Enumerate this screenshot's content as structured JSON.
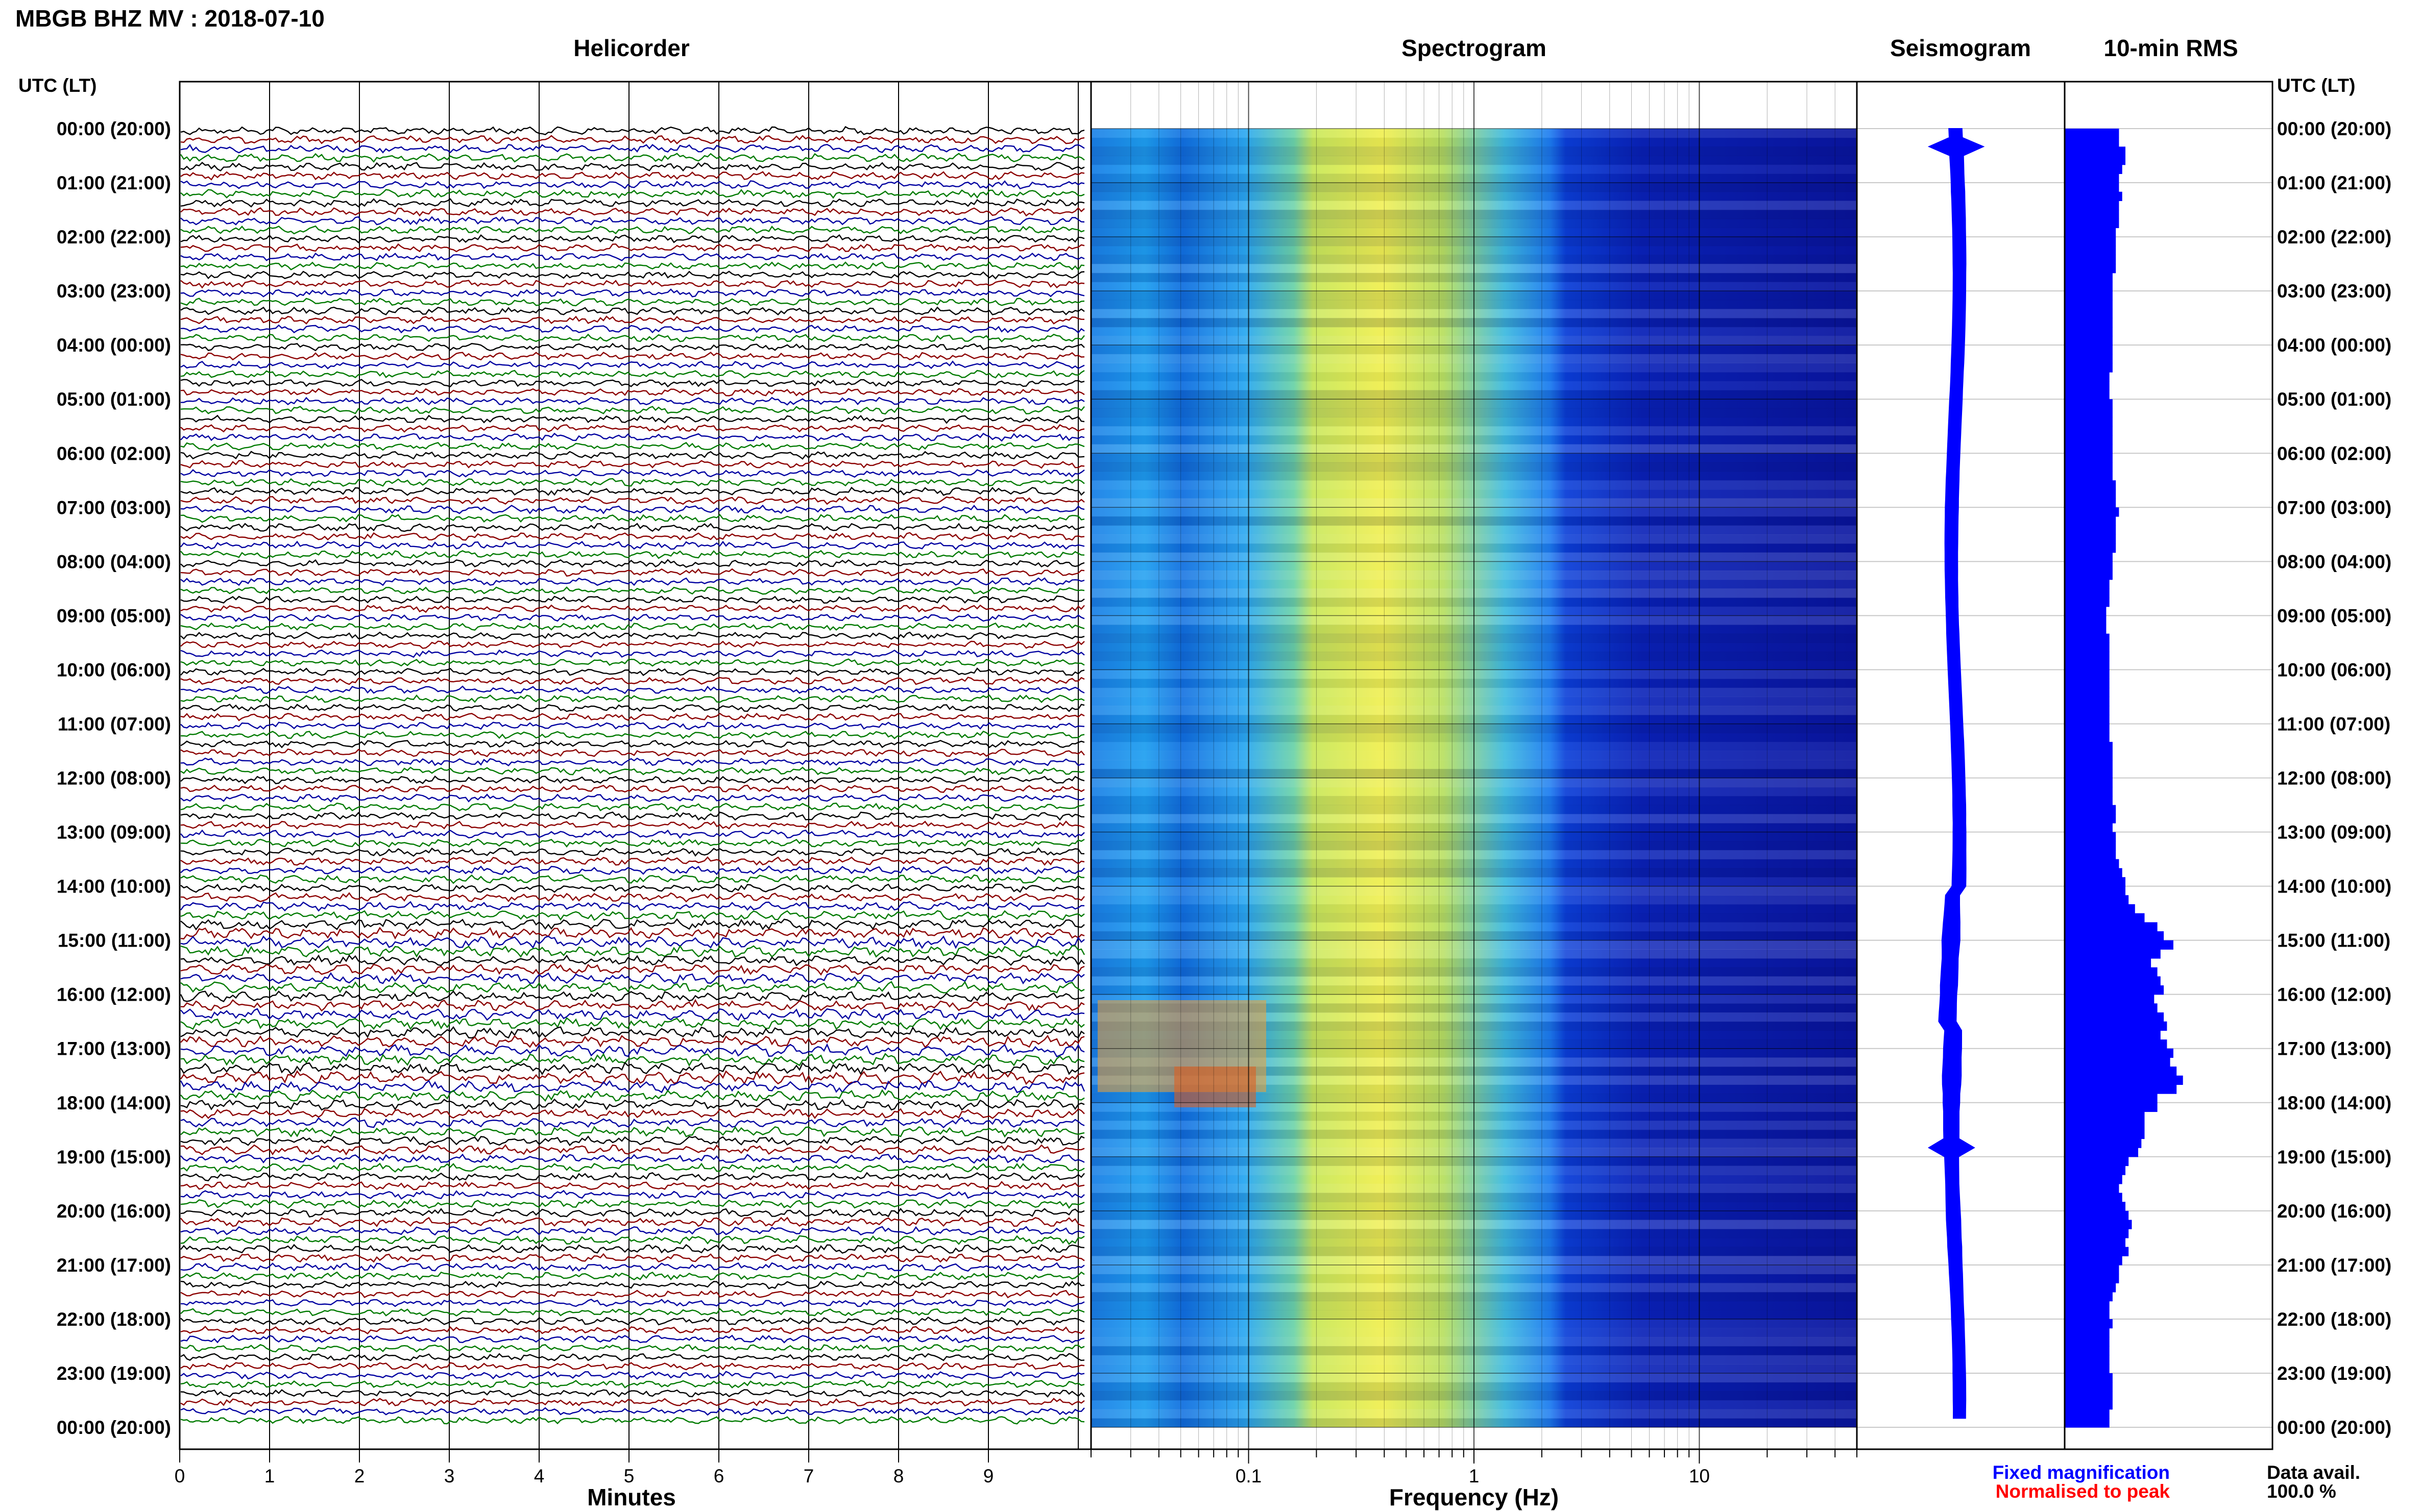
{
  "header": {
    "station_title": "MBGB BHZ MV : 2018-07-10",
    "utc_lt_label": "UTC (LT)"
  },
  "panels": {
    "helicorder": "Helicorder",
    "spectrogram": "Spectrogram",
    "seismogram": "Seismogram",
    "rms": "10-min RMS"
  },
  "axes": {
    "minutes_label": "Minutes",
    "frequency_label": "Frequency (Hz)",
    "minute_ticks": [
      "0",
      "1",
      "2",
      "3",
      "4",
      "5",
      "6",
      "7",
      "8",
      "9"
    ],
    "frequency_ticks": [
      "0.1",
      "1",
      "10"
    ]
  },
  "time_rows": [
    "00:00 (20:00)",
    "01:00 (21:00)",
    "02:00 (22:00)",
    "03:00 (23:00)",
    "04:00 (00:00)",
    "05:00 (01:00)",
    "06:00 (02:00)",
    "07:00 (03:00)",
    "08:00 (04:00)",
    "09:00 (05:00)",
    "10:00 (06:00)",
    "11:00 (07:00)",
    "12:00 (08:00)",
    "13:00 (09:00)",
    "14:00 (10:00)",
    "15:00 (11:00)",
    "16:00 (12:00)",
    "17:00 (13:00)",
    "18:00 (14:00)",
    "19:00 (15:00)",
    "20:00 (16:00)",
    "21:00 (17:00)",
    "22:00 (18:00)",
    "23:00 (19:00)",
    "00:00 (20:00)"
  ],
  "legend": {
    "fixed": "Fixed magnification",
    "normalised": "Normalised to peak",
    "fixed_color": "#0000ff",
    "normalised_color": "#ff0000"
  },
  "data_avail": {
    "label": "Data avail.",
    "value": "100.0 %"
  },
  "colors": {
    "trace_cycle": [
      "#000000",
      "#8b0000",
      "#0000a0",
      "#007a00"
    ],
    "rms_bar": "#0000ff",
    "seismogram": "#0000ff"
  },
  "chart_data": {
    "type": "helicorder-spectrogram",
    "station": "MBGB BHZ MV",
    "date": "2018-07-10",
    "helicorder": {
      "x_range_minutes": [
        0,
        10
      ],
      "rows_per_hour": 6,
      "hours": 24
    },
    "spectrogram": {
      "scale": "log",
      "freq_range_hz": [
        0.02,
        50
      ]
    },
    "rms_10min": {
      "units": "relative",
      "values": [
        0.34,
        0.34,
        0.38,
        0.38,
        0.36,
        0.34,
        0.34,
        0.36,
        0.34,
        0.34,
        0.34,
        0.32,
        0.32,
        0.32,
        0.32,
        0.32,
        0.3,
        0.3,
        0.3,
        0.3,
        0.3,
        0.3,
        0.3,
        0.3,
        0.3,
        0.3,
        0.3,
        0.28,
        0.28,
        0.28,
        0.3,
        0.3,
        0.3,
        0.3,
        0.3,
        0.3,
        0.3,
        0.3,
        0.3,
        0.32,
        0.32,
        0.32,
        0.34,
        0.32,
        0.32,
        0.32,
        0.32,
        0.3,
        0.3,
        0.3,
        0.28,
        0.28,
        0.28,
        0.26,
        0.26,
        0.26,
        0.28,
        0.28,
        0.28,
        0.28,
        0.28,
        0.28,
        0.28,
        0.28,
        0.28,
        0.28,
        0.28,
        0.28,
        0.3,
        0.3,
        0.3,
        0.3,
        0.3,
        0.3,
        0.3,
        0.32,
        0.32,
        0.3,
        0.32,
        0.32,
        0.32,
        0.34,
        0.36,
        0.38,
        0.38,
        0.4,
        0.44,
        0.5,
        0.58,
        0.62,
        0.68,
        0.6,
        0.54,
        0.58,
        0.6,
        0.62,
        0.56,
        0.58,
        0.62,
        0.64,
        0.6,
        0.64,
        0.68,
        0.66,
        0.7,
        0.74,
        0.7,
        0.58,
        0.58,
        0.5,
        0.5,
        0.5,
        0.48,
        0.46,
        0.4,
        0.38,
        0.36,
        0.34,
        0.36,
        0.38,
        0.4,
        0.42,
        0.4,
        0.38,
        0.4,
        0.36,
        0.34,
        0.34,
        0.32,
        0.3,
        0.28,
        0.28,
        0.3,
        0.28,
        0.28,
        0.28,
        0.28,
        0.28,
        0.3,
        0.3,
        0.3,
        0.3,
        0.28,
        0.28
      ]
    }
  }
}
